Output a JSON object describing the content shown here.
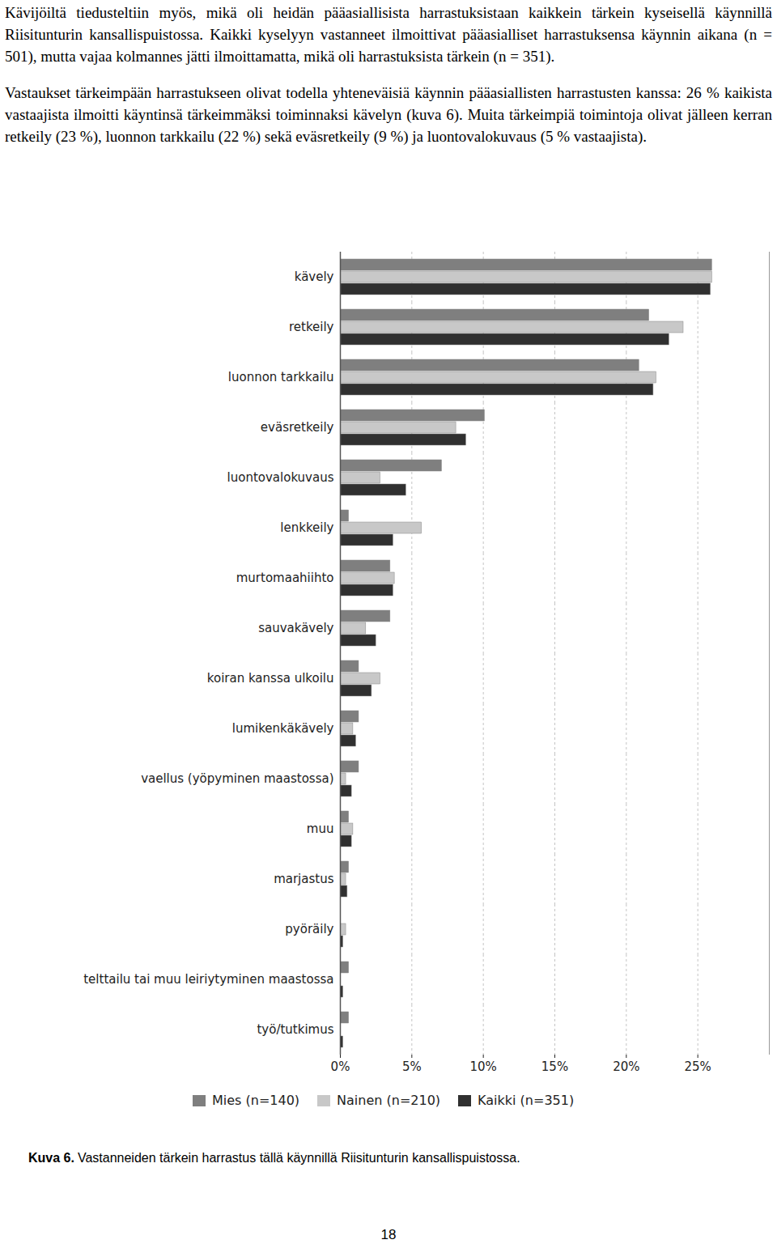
{
  "paragraphs": [
    "Kävijöiltä tiedusteltiin myös, mikä oli heidän pääasiallisista harrastuksistaan kaikkein tärkein kyseisellä käynnillä Riisitunturin kansallispuistossa. Kaikki kyselyyn vastanneet ilmoittivat pääasialliset harrastuksensa käynnin aikana (n = 501), mutta vajaa kolmannes jätti ilmoittamatta, mikä oli harrastuksista tärkein (n = 351).",
    "Vastaukset tärkeimpään harrastukseen olivat todella yhteneväisiä käynnin pääasiallisten harrastusten kanssa: 26 % kaikista vastaajista ilmoitti käyntinsä tärkeimmäksi toiminnaksi kävelyn (kuva 6). Muita tärkeimpiä toimintoja olivat jälleen kerran retkeily (23 %), luonnon tarkkailu (22 %) sekä eväsretkeily (9 %) ja luontovalokuvaus (5 % vastaajista)."
  ],
  "chart_data": {
    "type": "bar",
    "orientation": "horizontal",
    "categories": [
      "kävely",
      "retkeily",
      "luonnon tarkkailu",
      "eväsretkeily",
      "luontovalokuvaus",
      "lenkkeily",
      "murtomaahiihto",
      "sauvakävely",
      "koiran kanssa ulkoilu",
      "lumikenkäkävely",
      "vaellus (yöpyminen maastossa)",
      "muu",
      "marjastus",
      "pyöräily",
      "telttailu tai muu leiriytyminen maastossa",
      "työ/tutkimus"
    ],
    "series": [
      {
        "name": "Mies (n=140)",
        "color": "#7f7f7f",
        "values": [
          26.0,
          21.6,
          20.9,
          10.1,
          7.1,
          0.6,
          3.5,
          3.5,
          1.3,
          1.3,
          1.3,
          0.6,
          0.6,
          0,
          0.6,
          0.6
        ]
      },
      {
        "name": "Nainen (n=210)",
        "color": "#c8c8c8",
        "values": [
          26.0,
          24.0,
          22.1,
          8.1,
          2.8,
          5.7,
          3.8,
          1.8,
          2.8,
          0.9,
          0.4,
          0.9,
          0.4,
          0.4,
          0,
          0
        ]
      },
      {
        "name": "Kaikki (n=351)",
        "color": "#303030",
        "values": [
          25.9,
          23.0,
          21.9,
          8.8,
          4.6,
          3.7,
          3.7,
          2.5,
          2.2,
          1.1,
          0.8,
          0.8,
          0.5,
          0.2,
          0.2,
          0.2
        ]
      }
    ],
    "xlim": [
      0,
      30
    ],
    "xticks": [
      {
        "value": 0,
        "label": "0%"
      },
      {
        "value": 5,
        "label": "5%"
      },
      {
        "value": 10,
        "label": "10%"
      },
      {
        "value": 15,
        "label": "15%"
      },
      {
        "value": 20,
        "label": "20%"
      },
      {
        "value": 25,
        "label": "25%"
      }
    ],
    "grid": true,
    "legend": "bottom"
  },
  "caption": {
    "label": "Kuva 6.",
    "text": "Vastanneiden tärkein harrastus tällä käynnillä Riisitunturin kansallispuistossa."
  },
  "page_number": 18
}
